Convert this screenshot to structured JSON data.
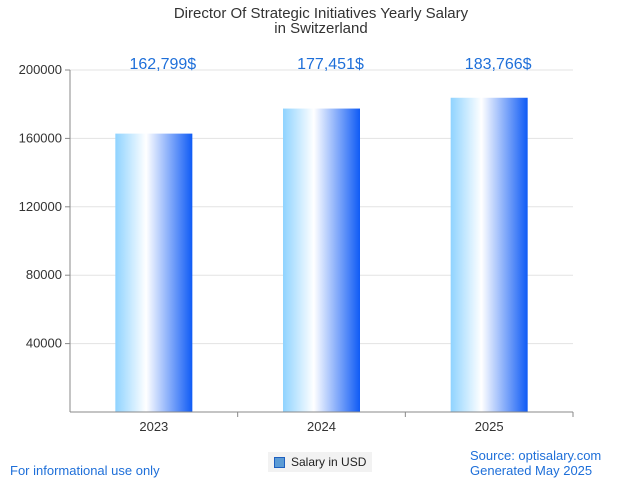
{
  "chart_data": {
    "type": "bar",
    "title_lines": [
      "Director Of Strategic Initiatives Yearly Salary",
      "in Switzerland"
    ],
    "categories": [
      "2023",
      "2024",
      "2025"
    ],
    "values": [
      162799,
      177451,
      183766
    ],
    "value_labels": [
      "162,799$",
      "177,451$",
      "183,766$"
    ],
    "y_ticks": [
      40000,
      80000,
      120000,
      160000,
      200000
    ],
    "ylim": [
      0,
      200000
    ],
    "grid": true,
    "legend": {
      "position": "bottom-center",
      "label": "Salary in USD"
    },
    "colors": {
      "bar_light": "#ffffff",
      "bar_mid": "#8fd3ff",
      "bar_dark": "#0f5bf5",
      "label": "#1e6fd9"
    }
  },
  "footer": {
    "left": "For informational use only",
    "source": "Source: optisalary.com",
    "generated": "Generated May 2025"
  }
}
